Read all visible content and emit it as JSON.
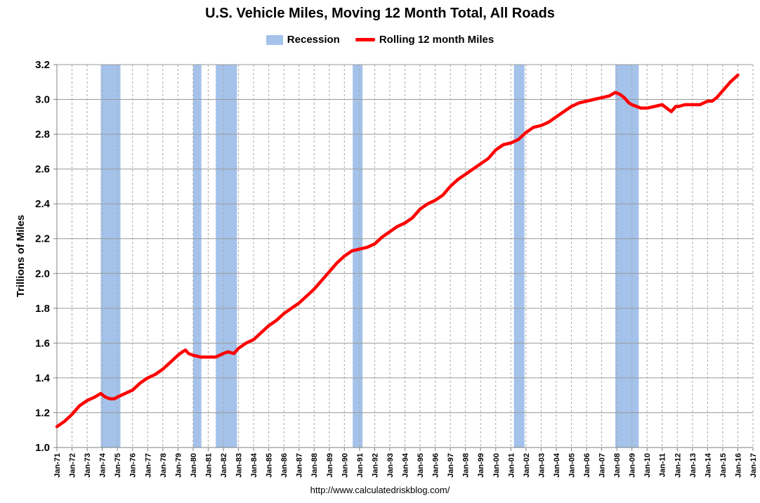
{
  "chart_data": {
    "type": "line",
    "title": "U.S. Vehicle Miles, Moving 12 Month Total, All Roads",
    "xlabel": "",
    "ylabel": "Trillions of Miles",
    "ylim": [
      1.0,
      3.2
    ],
    "yticks": [
      "1.0",
      "1.2",
      "1.4",
      "1.6",
      "1.8",
      "2.0",
      "2.2",
      "2.4",
      "2.6",
      "2.8",
      "3.0",
      "3.2"
    ],
    "xlim": [
      1971,
      2017
    ],
    "xticks": [
      "Jan-71",
      "Jan-72",
      "Jan-73",
      "Jan-74",
      "Jan-75",
      "Jan-76",
      "Jan-77",
      "Jan-78",
      "Jan-79",
      "Jan-80",
      "Jan-81",
      "Jan-82",
      "Jan-83",
      "Jan-84",
      "Jan-85",
      "Jan-86",
      "Jan-87",
      "Jan-88",
      "Jan-89",
      "Jan-90",
      "Jan-91",
      "Jan-92",
      "Jan-93",
      "Jan-94",
      "Jan-95",
      "Jan-96",
      "Jan-97",
      "Jan-98",
      "Jan-99",
      "Jan-00",
      "Jan-01",
      "Jan-02",
      "Jan-03",
      "Jan-04",
      "Jan-05",
      "Jan-06",
      "Jan-07",
      "Jan-08",
      "Jan-09",
      "Jan-10",
      "Jan-11",
      "Jan-12",
      "Jan-13",
      "Jan-14",
      "Jan-15",
      "Jan-16",
      "Jan-17"
    ],
    "grid": true,
    "legend": [
      "Recession",
      "Rolling 12 month Miles"
    ],
    "legend_position": "top",
    "recessions": [
      {
        "start": 1973.9,
        "end": 1975.2
      },
      {
        "start": 1980.0,
        "end": 1980.55
      },
      {
        "start": 1981.5,
        "end": 1982.9
      },
      {
        "start": 1990.55,
        "end": 1991.2
      },
      {
        "start": 2001.2,
        "end": 2001.9
      },
      {
        "start": 2007.9,
        "end": 2009.45
      }
    ],
    "series": [
      {
        "name": "Rolling 12 month Miles",
        "color": "#ff0000",
        "x": [
          1971.0,
          1971.5,
          1972.0,
          1972.5,
          1973.0,
          1973.5,
          1973.9,
          1974.2,
          1974.5,
          1974.8,
          1975.0,
          1975.5,
          1976.0,
          1976.5,
          1977.0,
          1977.5,
          1978.0,
          1978.5,
          1979.0,
          1979.3,
          1979.5,
          1979.7,
          1980.0,
          1980.5,
          1981.0,
          1981.5,
          1982.0,
          1982.3,
          1982.7,
          1983.0,
          1983.5,
          1984.0,
          1984.5,
          1985.0,
          1985.5,
          1986.0,
          1986.5,
          1987.0,
          1987.5,
          1988.0,
          1988.5,
          1989.0,
          1989.5,
          1990.0,
          1990.5,
          1991.0,
          1991.5,
          1992.0,
          1992.5,
          1993.0,
          1993.5,
          1994.0,
          1994.5,
          1995.0,
          1995.5,
          1996.0,
          1996.5,
          1997.0,
          1997.5,
          1998.0,
          1998.5,
          1999.0,
          1999.5,
          2000.0,
          2000.5,
          2001.0,
          2001.5,
          2002.0,
          2002.5,
          2003.0,
          2003.5,
          2004.0,
          2004.5,
          2005.0,
          2005.5,
          2006.0,
          2006.5,
          2007.0,
          2007.5,
          2007.9,
          2008.2,
          2008.5,
          2008.8,
          2009.0,
          2009.3,
          2009.6,
          2010.0,
          2010.5,
          2011.0,
          2011.3,
          2011.6,
          2011.9,
          2012.1,
          2012.5,
          2013.0,
          2013.5,
          2014.0,
          2014.3,
          2014.6,
          2015.0,
          2015.5,
          2016.0
        ],
        "values": [
          1.12,
          1.15,
          1.19,
          1.24,
          1.27,
          1.29,
          1.31,
          1.29,
          1.28,
          1.28,
          1.29,
          1.31,
          1.33,
          1.37,
          1.4,
          1.42,
          1.45,
          1.49,
          1.53,
          1.55,
          1.56,
          1.54,
          1.53,
          1.52,
          1.52,
          1.52,
          1.54,
          1.55,
          1.54,
          1.57,
          1.6,
          1.62,
          1.66,
          1.7,
          1.73,
          1.77,
          1.8,
          1.83,
          1.87,
          1.91,
          1.96,
          2.01,
          2.06,
          2.1,
          2.13,
          2.14,
          2.15,
          2.17,
          2.21,
          2.24,
          2.27,
          2.29,
          2.32,
          2.37,
          2.4,
          2.42,
          2.45,
          2.5,
          2.54,
          2.57,
          2.6,
          2.63,
          2.66,
          2.71,
          2.74,
          2.75,
          2.77,
          2.81,
          2.84,
          2.85,
          2.87,
          2.9,
          2.93,
          2.96,
          2.98,
          2.99,
          3.0,
          3.01,
          3.02,
          3.04,
          3.03,
          3.01,
          2.98,
          2.97,
          2.96,
          2.95,
          2.95,
          2.96,
          2.97,
          2.95,
          2.93,
          2.96,
          2.96,
          2.97,
          2.97,
          2.97,
          2.99,
          2.99,
          3.01,
          3.05,
          3.1,
          3.14
        ]
      }
    ]
  },
  "source": "http://www.calculatedriskblog.com/"
}
